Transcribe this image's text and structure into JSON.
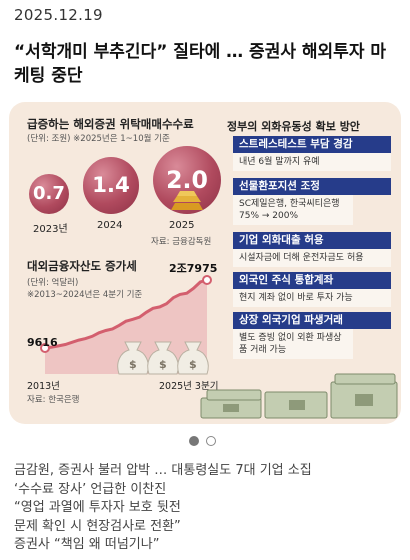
{
  "article": {
    "date": "2025.12.19",
    "headline": "“서학개미 부추긴다” 질타에 … 증권사 해외투자 마케팅 중단"
  },
  "infographic": {
    "fee_panel": {
      "title": "급증하는 해외증권 위탁매매수수료",
      "meta": "(단위: 조원) ※2025년은 1~10월 기준",
      "source": "자료: 금융감독원"
    },
    "loan_panel": {
      "title": "대외금융자산도 증가세",
      "meta_line1": "(단위: 억달러)",
      "meta_line2": "※2013~2024년은 4분기 기준",
      "start_value": "9616",
      "end_value": "2조7975",
      "x_start": "2013년",
      "x_end": "2025년 3분기",
      "source": "자료: 한국은행"
    },
    "policy_panel": {
      "title": "정부의 외화유동성 확보 방안",
      "items": [
        {
          "label": "스트레스테스트 부담 경감",
          "desc": "내년 6월 말까지 유예"
        },
        {
          "label": "선물환포지션 조정",
          "desc": "SC제일은행, 한국씨티은행 75% → 200%"
        },
        {
          "label": "기업 외화대출 허용",
          "desc": "시설자금에 더해 운전자금도 허용"
        },
        {
          "label": "외국인 주식 통합계좌",
          "desc": "현지 계좌 없이 바로 투자 가능"
        },
        {
          "label": "상장 외국기업 파생거래",
          "desc": "별도 증빙 없이 외환 파생상품 거래 가능"
        }
      ]
    },
    "chart_data": [
      {
        "type": "bar",
        "title": "급증하는 해외증권 위탁매매수수료",
        "unit": "조원",
        "categories": [
          "2023년",
          "2024",
          "2025"
        ],
        "values": [
          0.7,
          1.4,
          2.0
        ],
        "labels": [
          "0.7",
          "1.4",
          "2.0"
        ]
      },
      {
        "type": "line",
        "title": "대외금융자산도 증가세",
        "unit": "억달러",
        "x": [
          "2013년",
          "2025년 3분기"
        ],
        "values": [
          9616,
          27975
        ]
      }
    ]
  },
  "carousel": {
    "pages": 2,
    "active": 0
  },
  "related_articles": [
    "금감원, 증권사 불러 압박 … 대통령실도 7대 기업 소집",
    "‘수수료 장사’ 언급한 이찬진",
    "“영업 과열에 투자자 보호 뒷전",
    "문제 확인 시 현장검사로 전환”",
    "증권사 “책임 왜 떠넘기나”"
  ],
  "colors": {
    "bubble": "#b04a5e",
    "policy_label": "#263c8a",
    "card_bg": "#f6e9dd",
    "line": "#d35f6e"
  },
  "icons": [
    "money-bag-icon",
    "gold-bar-icon",
    "banknote-stack-icon"
  ]
}
